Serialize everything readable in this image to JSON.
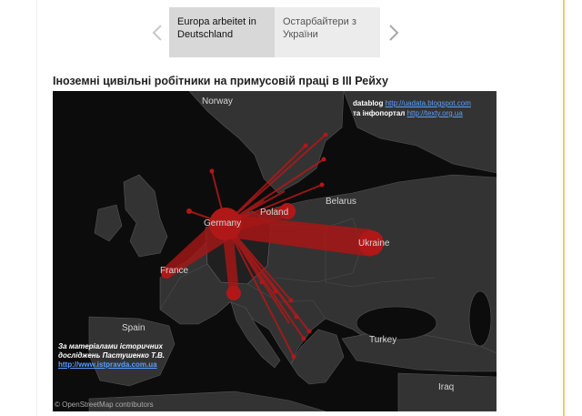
{
  "nav": {
    "tabs": [
      {
        "label": "Europa arbeitet in Deutschland",
        "selected": true
      },
      {
        "label": "Остарбайтери з України",
        "selected": false
      }
    ]
  },
  "article": {
    "headline": "Іноземні цивільні робітники на примусовій праці в ІІІ Рейху"
  },
  "map": {
    "countries": {
      "norway": "Norway",
      "germany": "Germany",
      "poland": "Poland",
      "belarus": "Belarus",
      "ukraine": "Ukraine",
      "france": "France",
      "spain": "Spain",
      "turkey": "Turkey",
      "iraq": "Iraq"
    },
    "credits": {
      "line1_prefix": "datablog",
      "line1_link": "http://uadata.blogspot.com",
      "line2_prefix": "та інфопортал",
      "line2_link": "http://texty.org.ua"
    },
    "source": {
      "line1": "За матеріалами історичних",
      "line2": "досліджень Пастушенко Т.В.",
      "link": "http://www.istpravda.com.ua"
    },
    "attribution": "© OpenStreetMap contributors",
    "colors": {
      "flow": "#a81616",
      "land": "#333333",
      "sea": "#0c0c0c"
    }
  }
}
